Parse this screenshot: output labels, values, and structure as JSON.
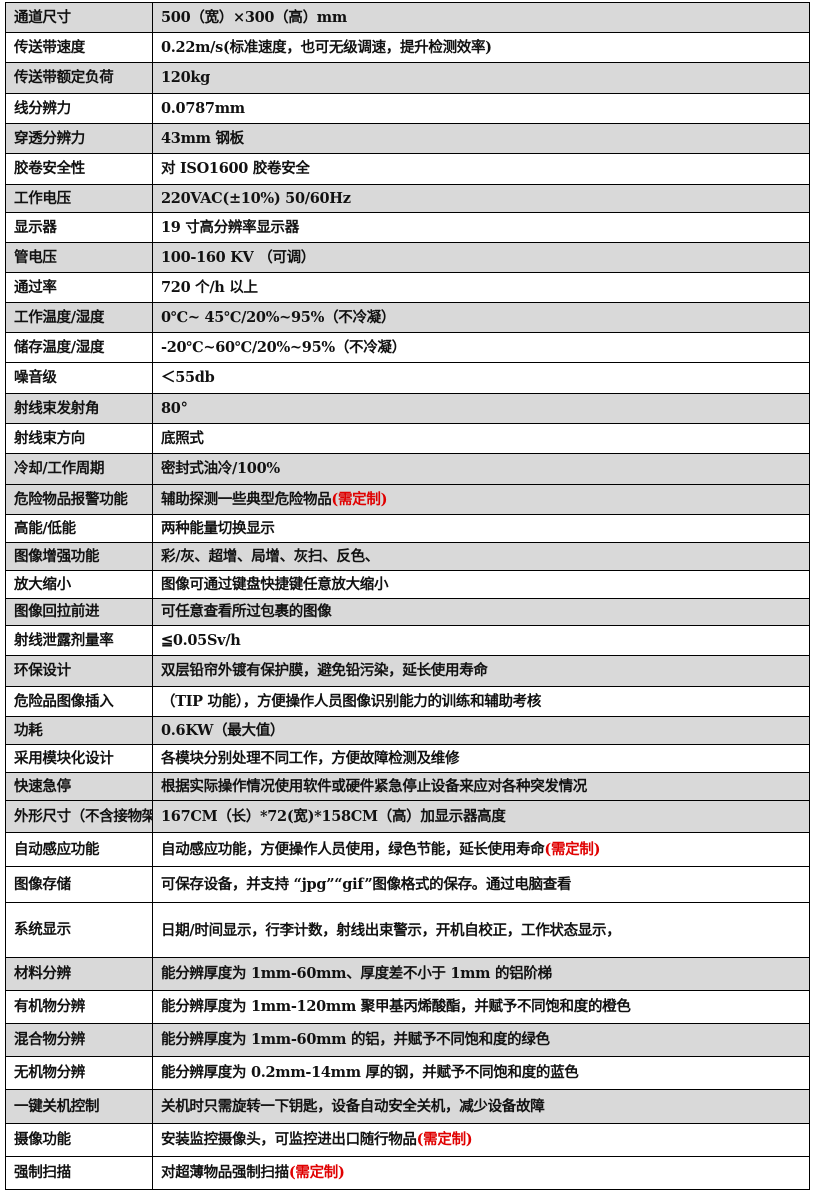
{
  "spec_table": {
    "rows": [
      {
        "label": "通道尺寸",
        "value": "500（宽）×300（高）mm",
        "shaded": true
      },
      {
        "label": "传送带速度",
        "value": "0.22m/s(标准速度，也可无级调速，提升检测效率)",
        "shaded": false
      },
      {
        "label": "传送带额定负荷",
        "value": "120kg",
        "shaded": true
      },
      {
        "label": "线分辨力",
        "value": "0.0787mm",
        "shaded": false
      },
      {
        "label": "穿透分辨力",
        "value": "43mm 钢板",
        "shaded": true
      },
      {
        "label": "胶卷安全性",
        "value": "对 ISO1600 胶卷安全",
        "shaded": false
      },
      {
        "label": "工作电压",
        "value": "220VAC(±10%) 50/60Hz",
        "shaded": true
      },
      {
        "label": "显示器",
        "value": "19 寸高分辨率显示器",
        "shaded": false
      },
      {
        "label": "管电压",
        "value": "100-160 KV （可调）",
        "shaded": true
      },
      {
        "label": "通过率",
        "value": "720 个/h 以上",
        "shaded": false
      },
      {
        "label": "工作温度/湿度",
        "value": "0℃~ 45℃/20%~95%（不冷凝）",
        "shaded": true
      },
      {
        "label": "储存温度/湿度",
        "value": "-20℃~60℃/20%~95%（不冷凝）",
        "shaded": false
      },
      {
        "label": "噪音级",
        "value": "＜55db",
        "shaded": false
      },
      {
        "label": "射线束发射角",
        "value": "80°",
        "shaded": true
      },
      {
        "label": "射线束方向",
        "value": "底照式",
        "shaded": false
      },
      {
        "label": "冷却/工作周期",
        "value": "密封式油冷/100%",
        "shaded": true
      },
      {
        "label": "危险物品报警功能",
        "value": "辅助探测一些典型危险物品",
        "note": "(需定制)",
        "shaded": true
      },
      {
        "label": "高能/低能",
        "value": "两种能量切换显示",
        "shaded": false
      },
      {
        "label": "图像增强功能",
        "value": "彩/灰、超增、局增、灰扫、反色、",
        "shaded": true
      },
      {
        "label": "放大缩小",
        "value": "图像可通过键盘快捷键任意放大缩小",
        "shaded": false
      },
      {
        "label": "图像回拉前进",
        "value": "可任意查看所过包裹的图像",
        "shaded": true
      },
      {
        "label": "射线泄露剂量率",
        "value": "≦0.05Sv/h",
        "shaded": false
      },
      {
        "label": "环保设计",
        "value": "双层铅帘外镀有保护膜，避免铅污染，延长使用寿命",
        "shaded": true
      },
      {
        "label": "危险品图像插入",
        "value": "（TIP 功能），方便操作人员图像识别能力的训练和辅助考核",
        "shaded": false
      },
      {
        "label": "功耗",
        "value": "0.6KW（最大值）",
        "shaded": true
      },
      {
        "label": "采用模块化设计",
        "value": "各模块分别处理不同工作，方便故障检测及维修",
        "shaded": false
      },
      {
        "label": "快速急停",
        "value": "根据实际操作情况使用软件或硬件紧急停止设备来应对各种突发情况",
        "shaded": true
      },
      {
        "label": "外形尺寸（不含接物架）",
        "value": "167CM（长）*72(宽)*158CM（高）加显示器高度",
        "shaded": true
      },
      {
        "label": "自动感应功能",
        "value": "自动感应功能，方便操作人员使用，绿色节能，延长使用寿命",
        "note": "(需定制)",
        "shaded": false
      },
      {
        "label": "图像存储",
        "value": "可保存设备，并支持 “jpg”“gif”图像格式的保存。通过电脑查看",
        "shaded": false
      },
      {
        "label": "系统显示",
        "value": "日期/时间显示，行李计数，射线出束警示，开机自校正，工作状态显示，",
        "shaded": false,
        "wrap": true
      },
      {
        "label": "材料分辨",
        "value": "能分辨厚度为 1mm-60mm、厚度差不小于 1mm 的铝阶梯",
        "shaded": true
      },
      {
        "label": "有机物分辨",
        "value": "能分辨厚度为 1mm-120mm 聚甲基丙烯酸酯，并赋予不同饱和度的橙色",
        "shaded": false
      },
      {
        "label": "混合物分辨",
        "value": "能分辨厚度为 1mm-60mm 的铝，并赋予不同饱和度的绿色",
        "shaded": true
      },
      {
        "label": "无机物分辨",
        "value": "能分辨厚度为 0.2mm-14mm 厚的钢，并赋予不同饱和度的蓝色",
        "shaded": false
      },
      {
        "label": "一键关机控制",
        "value": "关机时只需旋转一下钥匙，设备自动安全关机，减少设备故障",
        "shaded": true
      },
      {
        "label": "摄像功能",
        "value": "安装监控摄像头，可监控进出口随行物品",
        "note": "(需定制)",
        "shaded": false
      },
      {
        "label": "强制扫描",
        "value": "对超薄物品强制扫描",
        "note": "(需定制)",
        "shaded": false
      }
    ]
  },
  "colors": {
    "shade": "#d9d9d9",
    "note": "#e00000",
    "border": "#000000"
  }
}
